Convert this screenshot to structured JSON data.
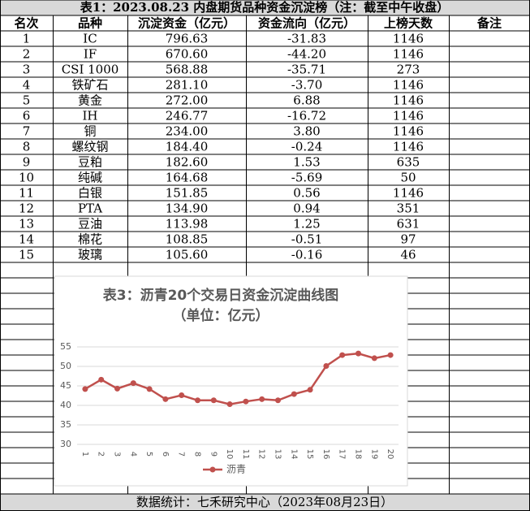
{
  "table": {
    "title": "表1：2023.08.23 内盘期货品种资金沉淀榜（注：截至中午收盘）",
    "header": [
      "名次",
      "品种",
      "沉淀资金（亿元）",
      "资金流向（亿元）",
      "上榜天数",
      "备注"
    ],
    "rows": [
      [
        "1",
        "IC",
        "796.63",
        "-31.83",
        "1146"
      ],
      [
        "2",
        "IF",
        "670.60",
        "-44.20",
        "1146"
      ],
      [
        "3",
        "CSI 1000",
        "568.88",
        "-35.71",
        "273"
      ],
      [
        "4",
        "铁矿石",
        "281.10",
        "-3.70",
        "1146"
      ],
      [
        "5",
        "黄金",
        "272.00",
        "6.88",
        "1146"
      ],
      [
        "6",
        "IH",
        "246.77",
        "-16.72",
        "1146"
      ],
      [
        "7",
        "铜",
        "234.00",
        "3.80",
        "1146"
      ],
      [
        "8",
        "螺纹钢",
        "184.40",
        "-0.24",
        "1146"
      ],
      [
        "9",
        "豆粕",
        "182.60",
        "1.53",
        "635"
      ],
      [
        "10",
        "纯碱",
        "164.68",
        "-5.69",
        "50"
      ],
      [
        "11",
        "白银",
        "151.85",
        "0.56",
        "1146"
      ],
      [
        "12",
        "PTA",
        "134.90",
        "0.94",
        "351"
      ],
      [
        "13",
        "豆油",
        "113.98",
        "1.25",
        "631"
      ],
      [
        "14",
        "棉花",
        "108.85",
        "-0.51",
        "97"
      ],
      [
        "15",
        "玻璃",
        "105.60",
        "-0.16",
        "46"
      ]
    ],
    "footer": "数据统计：七禾研究中心（2023年08月23日）"
  },
  "chart_data": {
    "type": "line",
    "title": "表3：沥青20个交易日资金沉淀曲线图",
    "subtitle": "（单位：亿元）",
    "categories": [
      "1",
      "2",
      "3",
      "4",
      "5",
      "6",
      "7",
      "8",
      "9",
      "10",
      "11",
      "12",
      "13",
      "14",
      "15",
      "16",
      "17",
      "18",
      "19",
      "20"
    ],
    "series": [
      {
        "name": "沥青",
        "color": "#c0504d",
        "values": [
          44.2,
          46.6,
          44.3,
          45.7,
          44.2,
          41.6,
          42.6,
          41.3,
          41.3,
          40.3,
          41.0,
          41.6,
          41.3,
          42.9,
          44.0,
          50.1,
          52.9,
          53.3,
          52.1,
          52.9
        ]
      }
    ],
    "ylim": [
      30,
      55
    ],
    "yticks": [
      30,
      35,
      40,
      45,
      50,
      55
    ],
    "grid": true,
    "legend": "bottom"
  }
}
